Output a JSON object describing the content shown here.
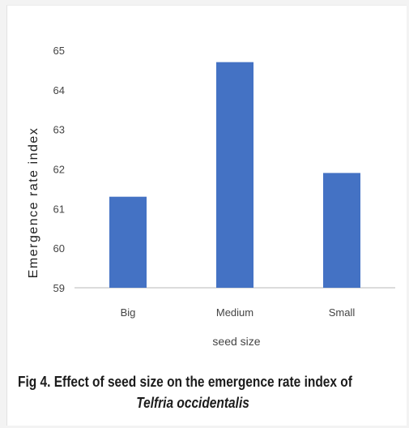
{
  "chart_data": {
    "type": "bar",
    "categories": [
      "Big",
      "Medium",
      "Small"
    ],
    "values": [
      61.3,
      64.7,
      61.9
    ],
    "ylabel": "Emergence rate index",
    "xlabel": "seed size",
    "ylim": [
      59,
      65
    ],
    "yticks": [
      "59",
      "60",
      "61",
      "62",
      "63",
      "64",
      "65"
    ],
    "grid": false,
    "bar_color": "#4472c4"
  },
  "caption": {
    "text": "Fig 4. Effect of seed size on the emergence rate index of",
    "species": "Telfria occidentalis"
  }
}
